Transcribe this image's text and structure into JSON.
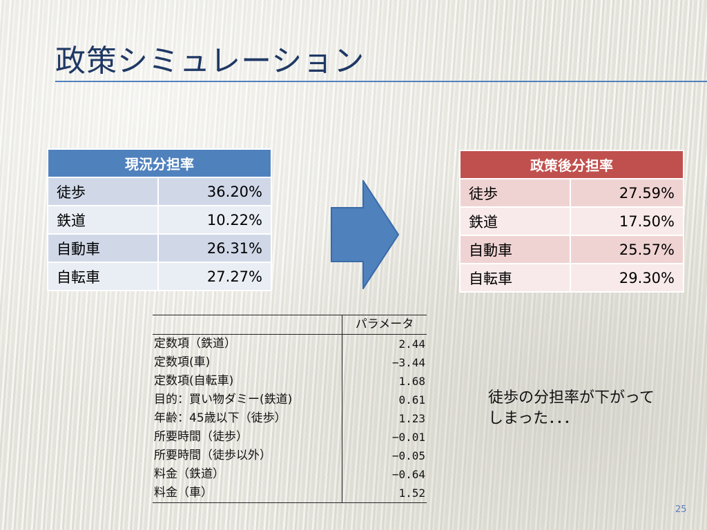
{
  "title": "政策シミュレーション",
  "current_share": {
    "header": "現況分担率",
    "rows": [
      {
        "mode": "徒歩",
        "value": "36.20%"
      },
      {
        "mode": "鉄道",
        "value": "10.22%"
      },
      {
        "mode": "自動車",
        "value": "26.31%"
      },
      {
        "mode": "自転車",
        "value": "27.27%"
      }
    ]
  },
  "policy_share": {
    "header": "政策後分担率",
    "rows": [
      {
        "mode": "徒歩",
        "value": "27.59%"
      },
      {
        "mode": "鉄道",
        "value": "17.50%"
      },
      {
        "mode": "自動車",
        "value": "25.57%"
      },
      {
        "mode": "自転車",
        "value": "29.30%"
      }
    ]
  },
  "arrow": {
    "icon": "right-arrow-icon",
    "fill": "#4f81bd",
    "stroke": "#3a6aa8"
  },
  "parameters": {
    "column_header": "パラメータ",
    "rows": [
      {
        "name": "定数項（鉄道）",
        "value": "2.44"
      },
      {
        "name": "定数項(車)",
        "value": "−3.44"
      },
      {
        "name": "定数項(自転車)",
        "value": "1.68"
      },
      {
        "name": "目的：買い物ダミー(鉄道)",
        "value": "0.61"
      },
      {
        "name": "年齢：45歳以下（徒歩）",
        "value": "1.23"
      },
      {
        "name": "所要時間（徒歩）",
        "value": "−0.01"
      },
      {
        "name": "所要時間（徒歩以外）",
        "value": "−0.05"
      },
      {
        "name": "料金（鉄道）",
        "value": "−0.64"
      },
      {
        "name": "料金（車）",
        "value": "1.52"
      }
    ]
  },
  "note": {
    "line1": "徒歩の分担率が下がって",
    "line2": "しまった．．．"
  },
  "page_number": "25",
  "colors": {
    "title": "#1f3864",
    "current_header": "#4f81bd",
    "policy_header": "#c0504d"
  }
}
